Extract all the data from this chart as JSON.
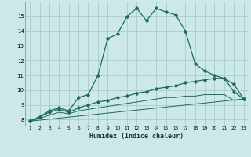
{
  "xlabel": "Humidex (Indice chaleur)",
  "background_color": "#cce8e8",
  "grid_color": "#aacccc",
  "line_color": "#1a6b5a",
  "xlim": [
    0.5,
    23.5
  ],
  "ylim": [
    7.6,
    16.0
  ],
  "xticks": [
    1,
    2,
    3,
    4,
    5,
    6,
    7,
    8,
    9,
    10,
    11,
    12,
    13,
    14,
    15,
    16,
    17,
    18,
    19,
    20,
    21,
    22,
    23
  ],
  "yticks": [
    8,
    9,
    10,
    11,
    12,
    13,
    14,
    15
  ],
  "series1_x": [
    1,
    2,
    3,
    4,
    5,
    6,
    7,
    8,
    9,
    10,
    11,
    12,
    13,
    14,
    15,
    16,
    17,
    18,
    19,
    20,
    21,
    22,
    23
  ],
  "series1_y": [
    7.9,
    8.2,
    8.6,
    8.8,
    8.6,
    9.5,
    9.7,
    11.0,
    13.5,
    13.8,
    15.0,
    15.55,
    14.7,
    15.55,
    15.3,
    15.1,
    14.0,
    11.8,
    11.3,
    11.0,
    10.8,
    9.9,
    9.4
  ],
  "series2_x": [
    1,
    2,
    3,
    4,
    5,
    6,
    7,
    8,
    9,
    10,
    11,
    12,
    13,
    14,
    15,
    16,
    17,
    18,
    19,
    20,
    21,
    22,
    23
  ],
  "series2_y": [
    7.9,
    8.2,
    8.5,
    8.7,
    8.5,
    8.8,
    9.0,
    9.2,
    9.3,
    9.5,
    9.6,
    9.8,
    9.9,
    10.1,
    10.2,
    10.3,
    10.5,
    10.6,
    10.7,
    10.8,
    10.8,
    10.4,
    9.4
  ],
  "series3_x": [
    1,
    2,
    3,
    4,
    5,
    6,
    7,
    8,
    9,
    10,
    11,
    12,
    13,
    14,
    15,
    16,
    17,
    18,
    19,
    20,
    21,
    22,
    23
  ],
  "series3_y": [
    7.9,
    8.1,
    8.3,
    8.5,
    8.4,
    8.6,
    8.7,
    8.8,
    8.9,
    9.0,
    9.1,
    9.2,
    9.3,
    9.4,
    9.5,
    9.5,
    9.6,
    9.6,
    9.7,
    9.7,
    9.7,
    9.3,
    9.4
  ],
  "series4_x": [
    1,
    23
  ],
  "series4_y": [
    7.9,
    9.4
  ]
}
